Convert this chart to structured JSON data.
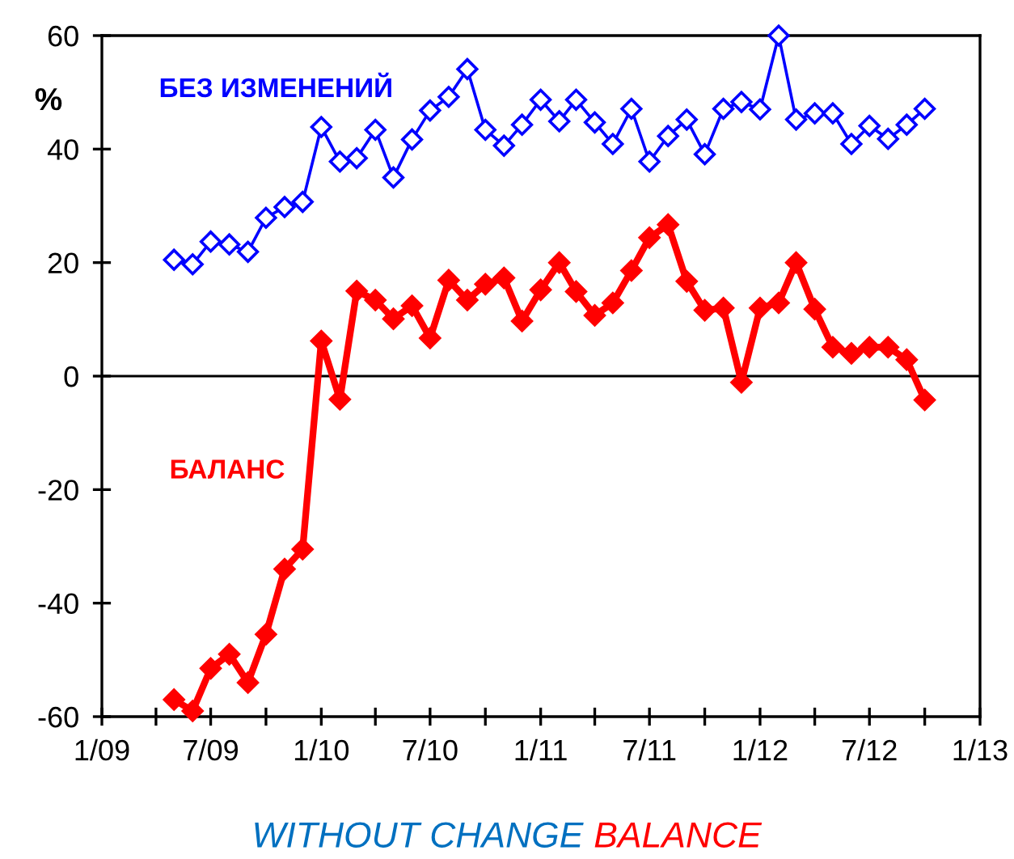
{
  "chart_data": {
    "type": "line",
    "ylabel": "%",
    "x": [
      "2009-05",
      "2009-06",
      "2009-07",
      "2009-08",
      "2009-09",
      "2009-10",
      "2009-11",
      "2009-12",
      "2010-01",
      "2010-02",
      "2010-03",
      "2010-04",
      "2010-05",
      "2010-06",
      "2010-07",
      "2010-08",
      "2010-09",
      "2010-10",
      "2010-11",
      "2010-12",
      "2011-01",
      "2011-02",
      "2011-03",
      "2011-04",
      "2011-05",
      "2011-06",
      "2011-07",
      "2011-08",
      "2011-09",
      "2011-10",
      "2011-11",
      "2011-12",
      "2012-01",
      "2012-02",
      "2012-03",
      "2012-04",
      "2012-05",
      "2012-06",
      "2012-07",
      "2012-08",
      "2012-09",
      "2012-10"
    ],
    "series": [
      {
        "name": "БЕЗ ИЗМЕНЕНИЙ",
        "color": "#0000ff",
        "marker": "diamond",
        "values": [
          20.5,
          19.7,
          23.7,
          23.2,
          21.9,
          27.9,
          29.8,
          30.7,
          43.9,
          37.8,
          38.4,
          43.4,
          35,
          41.7,
          46.8,
          49.2,
          54.1,
          43.4,
          40.6,
          44.3,
          48.7,
          44.9,
          48.7,
          44.7,
          40.9,
          47.1,
          37.8,
          42.3,
          45.2,
          39.1,
          47.1,
          48.3,
          47,
          60,
          45.2,
          46.3,
          46.3,
          40.9,
          44.1,
          41.8,
          44.3,
          47.1
        ]
      },
      {
        "name": "БАЛАНС",
        "color": "#ff0000",
        "marker": "diamond",
        "values": [
          -57,
          -59,
          -51.5,
          -49,
          -54,
          -45.5,
          -34,
          -30.5,
          6.2,
          -4.1,
          15,
          13.4,
          10.1,
          12.4,
          6.7,
          16.9,
          13.4,
          16.2,
          17.3,
          9.7,
          15.2,
          20,
          14.9,
          10.7,
          12.9,
          18.6,
          24.4,
          26.7,
          16.7,
          11.6,
          12,
          -1.1,
          12,
          12.9,
          20,
          11.8,
          5.1,
          4,
          5.1,
          5.1,
          2.9,
          -4.2
        ]
      }
    ],
    "xlim": [
      "2009-01",
      "2013-01"
    ],
    "xticks": [
      {
        "value": "2009-01",
        "label": "1/09"
      },
      {
        "value": "2009-04",
        "label": null
      },
      {
        "value": "2009-07",
        "label": "7/09"
      },
      {
        "value": "2009-10",
        "label": null
      },
      {
        "value": "2010-01",
        "label": "1/10"
      },
      {
        "value": "2010-04",
        "label": null
      },
      {
        "value": "2010-07",
        "label": "7/10"
      },
      {
        "value": "2010-10",
        "label": null
      },
      {
        "value": "2011-01",
        "label": "1/11"
      },
      {
        "value": "2011-04",
        "label": null
      },
      {
        "value": "2011-07",
        "label": "7/11"
      },
      {
        "value": "2011-10",
        "label": null
      },
      {
        "value": "2012-01",
        "label": "1/12"
      },
      {
        "value": "2012-04",
        "label": null
      },
      {
        "value": "2012-07",
        "label": "7/12"
      },
      {
        "value": "2012-10",
        "label": null
      },
      {
        "value": "2013-01",
        "label": "1/13"
      }
    ],
    "ylim": [
      -60,
      60
    ],
    "yticks": [
      -60,
      -40,
      -20,
      0,
      20,
      40,
      60
    ],
    "ref_lines": [
      {
        "axis": "y",
        "value": 0,
        "color": "#000000"
      }
    ],
    "grid": false,
    "legend": false,
    "annotations": [
      "WITHOUT CHANGE",
      "BALANCE"
    ]
  }
}
